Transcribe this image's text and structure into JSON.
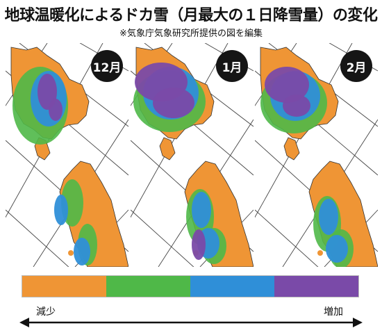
{
  "title": "地球温暖化によるドカ雪（月最大の１日降雪量）の変化",
  "subtitle": "※気象庁気象研究所提供の図を編集",
  "panels": [
    {
      "month": "12月"
    },
    {
      "month": "1月"
    },
    {
      "month": "2月"
    }
  ],
  "legend": {
    "colors": [
      "#ef9535",
      "#4fb848",
      "#2f8fd8",
      "#7a4aa8"
    ],
    "low_label": "減少",
    "high_label": "増加"
  },
  "colors": {
    "land": "#ef9535",
    "green": "#4fb848",
    "blue": "#2f8fd8",
    "purple": "#7a4aa8",
    "grid": "#444444"
  }
}
